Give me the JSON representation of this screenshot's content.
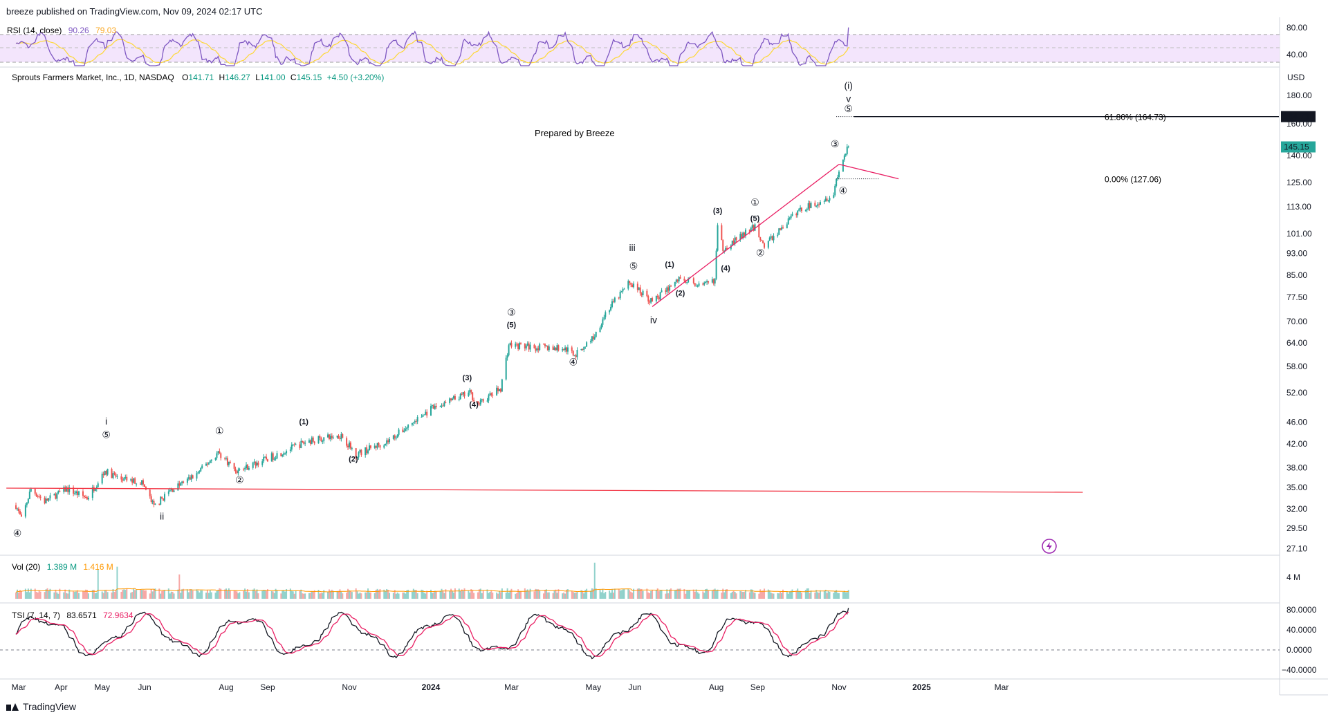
{
  "header": {
    "published": "breeze published on TradingView.com, Nov 09, 2024 02:17 UTC"
  },
  "watermark": "TradingView",
  "symbol": {
    "name": "Sprouts Farmers Market, Inc., 1D, NASDAQ",
    "o_label": "O",
    "o": "141.71",
    "h_label": "H",
    "h": "146.27",
    "l_label": "L",
    "l": "141.00",
    "c_label": "C",
    "c": "145.15",
    "change": "+4.50 (+3.20%)",
    "currency": "USD",
    "last_price": "145.15"
  },
  "annotations": {
    "prepared": "Prepared by Breeze",
    "fib_618": "61.80% (164.73)",
    "fib_618_tag": "164.73",
    "fib_0": "0.00% (127.06)"
  },
  "rsi": {
    "label": "RSI (14, close)",
    "value": "90.26",
    "ma": "79.03",
    "ticks": [
      "80.00",
      "40.00"
    ]
  },
  "volume": {
    "label": "Vol (20)",
    "value": "1.389 M",
    "ma": "1.416 M",
    "tick": "4 M"
  },
  "tsi": {
    "label": "TSI (7, 14, 7)",
    "value": "83.6571",
    "signal": "72.9634",
    "ticks": [
      "80.0000",
      "40.0000",
      "0.0000",
      "−40.0000"
    ]
  },
  "colors": {
    "up": "#26a69a",
    "down": "#ef5350",
    "rsi": "#7e57c2",
    "rsi_ma": "#fdd835",
    "trend": "#f23645",
    "channel": "#e91e63",
    "tsi_signal": "#e91e63",
    "vol_ma": "#ff9800"
  },
  "chart_data": {
    "type": "candlestick",
    "scale": "log",
    "price_axis_ticks": [
      "180.00",
      "164.73",
      "160.00",
      "145.15",
      "140.00",
      "125.00",
      "113.00",
      "101.00",
      "93.00",
      "85.00",
      "77.50",
      "70.00",
      "64.00",
      "58.00",
      "52.00",
      "46.00",
      "42.00",
      "38.00",
      "35.00",
      "32.00",
      "29.50",
      "27.10"
    ],
    "time_axis_ticks": [
      "Mar",
      "Apr",
      "May",
      "Jun",
      "Aug",
      "Sep",
      "Nov",
      "2024",
      "Mar",
      "May",
      "Jun",
      "Aug",
      "Sep",
      "Nov",
      "2025",
      "Mar"
    ],
    "price_path": [
      {
        "d": "2023-02-27",
        "p": 32.5
      },
      {
        "d": "2023-03-03",
        "p": 30.6
      },
      {
        "d": "2023-03-10",
        "p": 34.8
      },
      {
        "d": "2023-03-20",
        "p": 33.0
      },
      {
        "d": "2023-04-05",
        "p": 34.8
      },
      {
        "d": "2023-04-20",
        "p": 33.5
      },
      {
        "d": "2023-05-03",
        "p": 37.5
      },
      {
        "d": "2023-05-15",
        "p": 36.2
      },
      {
        "d": "2023-05-30",
        "p": 35.8
      },
      {
        "d": "2023-06-08",
        "p": 32.3
      },
      {
        "d": "2023-06-20",
        "p": 34.5
      },
      {
        "d": "2023-07-10",
        "p": 37.0
      },
      {
        "d": "2023-07-26",
        "p": 40.5
      },
      {
        "d": "2023-08-09",
        "p": 37.5
      },
      {
        "d": "2023-09-01",
        "p": 39.5
      },
      {
        "d": "2023-10-01",
        "p": 42.5
      },
      {
        "d": "2023-10-26",
        "p": 43.5
      },
      {
        "d": "2023-11-06",
        "p": 40.2
      },
      {
        "d": "2023-11-30",
        "p": 42.5
      },
      {
        "d": "2024-01-01",
        "p": 48.5
      },
      {
        "d": "2024-01-30",
        "p": 52.0
      },
      {
        "d": "2024-02-05",
        "p": 49.5
      },
      {
        "d": "2024-02-22",
        "p": 53.0
      },
      {
        "d": "2024-02-28",
        "p": 63.5
      },
      {
        "d": "2024-03-15",
        "p": 63.0
      },
      {
        "d": "2024-04-10",
        "p": 62.5
      },
      {
        "d": "2024-04-18",
        "p": 61.0
      },
      {
        "d": "2024-05-02",
        "p": 66.0
      },
      {
        "d": "2024-05-10",
        "p": 72.5
      },
      {
        "d": "2024-05-28",
        "p": 82.5
      },
      {
        "d": "2024-06-14",
        "p": 76.0
      },
      {
        "d": "2024-07-05",
        "p": 84.0
      },
      {
        "d": "2024-07-22",
        "p": 81.0
      },
      {
        "d": "2024-07-31",
        "p": 83.5
      },
      {
        "d": "2024-08-02",
        "p": 104.0
      },
      {
        "d": "2024-08-06",
        "p": 95.0
      },
      {
        "d": "2024-08-30",
        "p": 104.0
      },
      {
        "d": "2024-09-06",
        "p": 96.0
      },
      {
        "d": "2024-10-01",
        "p": 111.0
      },
      {
        "d": "2024-10-28",
        "p": 119.0
      },
      {
        "d": "2024-10-30",
        "p": 127.06
      },
      {
        "d": "2024-11-04",
        "p": 138.0
      },
      {
        "d": "2024-11-08",
        "p": 145.15
      }
    ],
    "horizontal_line": {
      "from": {
        "d": "2023-02-20",
        "p": 34.9
      },
      "to": {
        "d": "2025-04-30",
        "p": 34.3
      }
    },
    "channel_lines": [
      {
        "from": {
          "d": "2024-06-14",
          "p": 74.5
        },
        "to": {
          "d": "2024-11-01",
          "p": 135.0
        }
      },
      {
        "from": {
          "d": "2024-11-01",
          "p": 135.0
        },
        "to": {
          "d": "2024-12-15",
          "p": 127.06
        }
      }
    ],
    "wave_labels": [
      {
        "t": "④",
        "d": "2023-02-28",
        "p": 28.5,
        "k": "c"
      },
      {
        "t": "i",
        "d": "2023-05-04",
        "p": 45.5,
        "k": "r"
      },
      {
        "t": "⑤",
        "d": "2023-05-04",
        "p": 43.0,
        "k": "c"
      },
      {
        "t": "ii",
        "d": "2023-06-14",
        "p": 30.6,
        "k": "r"
      },
      {
        "t": "①",
        "d": "2023-07-27",
        "p": 43.7,
        "k": "c"
      },
      {
        "t": "②",
        "d": "2023-08-11",
        "p": 35.6,
        "k": "c"
      },
      {
        "t": "(1)",
        "d": "2023-09-28",
        "p": 45.6,
        "k": "w"
      },
      {
        "t": "(2)",
        "d": "2023-11-04",
        "p": 39.0,
        "k": "w"
      },
      {
        "t": "(3)",
        "d": "2024-01-28",
        "p": 54.8,
        "k": "w"
      },
      {
        "t": "(4)",
        "d": "2024-02-02",
        "p": 49.0,
        "k": "w"
      },
      {
        "t": "③",
        "d": "2024-03-01",
        "p": 71.7,
        "k": "c"
      },
      {
        "t": "(5)",
        "d": "2024-03-01",
        "p": 68.3,
        "k": "w"
      },
      {
        "t": "④",
        "d": "2024-04-16",
        "p": 58.3,
        "k": "c"
      },
      {
        "t": "iii",
        "d": "2024-05-30",
        "p": 94.0,
        "k": "r"
      },
      {
        "t": "⑤",
        "d": "2024-05-31",
        "p": 87.0,
        "k": "c"
      },
      {
        "t": "iv",
        "d": "2024-06-15",
        "p": 69.5,
        "k": "r"
      },
      {
        "t": "(1)",
        "d": "2024-06-27",
        "p": 88.0,
        "k": "w"
      },
      {
        "t": "(2)",
        "d": "2024-07-05",
        "p": 78.0,
        "k": "w"
      },
      {
        "t": "(3)",
        "d": "2024-08-02",
        "p": 110.0,
        "k": "w"
      },
      {
        "t": "(4)",
        "d": "2024-08-08",
        "p": 86.5,
        "k": "w"
      },
      {
        "t": "①",
        "d": "2024-08-30",
        "p": 113.5,
        "k": "c"
      },
      {
        "t": "(5)",
        "d": "2024-08-30",
        "p": 106.5,
        "k": "w"
      },
      {
        "t": "②",
        "d": "2024-09-03",
        "p": 92.0,
        "k": "c"
      },
      {
        "t": "③",
        "d": "2024-10-29",
        "p": 145.0,
        "k": "c"
      },
      {
        "t": "④",
        "d": "2024-11-04",
        "p": 119.3,
        "k": "c"
      },
      {
        "t": "(i)",
        "d": "2024-11-08",
        "p": 185.0,
        "k": "r"
      },
      {
        "t": "v",
        "d": "2024-11-08",
        "p": 175.0,
        "k": "r"
      },
      {
        "t": "⑤",
        "d": "2024-11-08",
        "p": 168.0,
        "k": "c"
      }
    ]
  }
}
